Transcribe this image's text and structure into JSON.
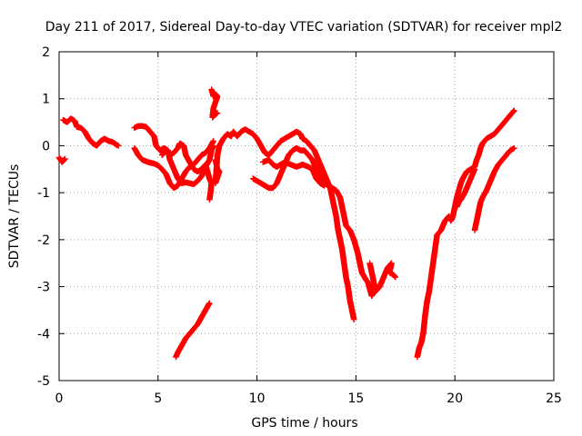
{
  "chart_data": {
    "type": "scatter",
    "title": "Day 211 of 2017, Sidereal Day-to-day VTEC variation (SDTVAR) for receiver mpl2",
    "xlabel": "GPS time / hours",
    "ylabel": "SDTVAR / TECUs",
    "xlim": [
      0,
      25
    ],
    "ylim": [
      -5,
      2
    ],
    "xticks": [
      "0",
      "5",
      "10",
      "15",
      "20",
      "25"
    ],
    "yticks": [
      "2",
      "1",
      "0",
      "-1",
      "-2",
      "-3",
      "-4",
      "-5"
    ],
    "grid": true,
    "marker": "plus",
    "color": "#ff0000",
    "tracks": [
      [
        [
          0.0,
          -0.25
        ],
        [
          0.15,
          -0.35
        ],
        [
          0.3,
          -0.28
        ]
      ],
      [
        [
          0.2,
          0.55
        ],
        [
          0.4,
          0.5
        ],
        [
          0.6,
          0.58
        ],
        [
          0.8,
          0.52
        ],
        [
          0.9,
          0.4
        ],
        [
          1.1,
          0.38
        ],
        [
          1.3,
          0.3
        ],
        [
          1.5,
          0.15
        ],
        [
          1.7,
          0.05
        ],
        [
          1.9,
          0.0
        ],
        [
          2.1,
          0.1
        ],
        [
          2.3,
          0.15
        ],
        [
          2.5,
          0.1
        ],
        [
          2.7,
          0.08
        ],
        [
          2.9,
          0.02
        ],
        [
          3.0,
          0.0
        ]
      ],
      [
        [
          3.8,
          0.38
        ],
        [
          4.0,
          0.42
        ],
        [
          4.2,
          0.42
        ],
        [
          4.4,
          0.4
        ],
        [
          4.6,
          0.3
        ],
        [
          4.8,
          0.2
        ],
        [
          4.9,
          0.0
        ],
        [
          5.1,
          -0.1
        ],
        [
          5.3,
          -0.05
        ],
        [
          5.5,
          -0.1
        ],
        [
          5.6,
          -0.3
        ],
        [
          5.8,
          -0.5
        ],
        [
          6.0,
          -0.7
        ],
        [
          6.2,
          -0.8
        ],
        [
          6.4,
          -0.78
        ],
        [
          6.6,
          -0.8
        ],
        [
          6.8,
          -0.82
        ],
        [
          7.0,
          -0.75
        ],
        [
          7.2,
          -0.65
        ],
        [
          7.4,
          -0.45
        ],
        [
          7.6,
          -0.3
        ],
        [
          7.7,
          -0.1
        ],
        [
          7.8,
          0.0
        ]
      ],
      [
        [
          3.8,
          -0.05
        ],
        [
          4.0,
          -0.2
        ],
        [
          4.2,
          -0.3
        ],
        [
          4.5,
          -0.35
        ],
        [
          4.8,
          -0.38
        ],
        [
          5.0,
          -0.42
        ],
        [
          5.2,
          -0.5
        ],
        [
          5.4,
          -0.6
        ],
        [
          5.6,
          -0.8
        ],
        [
          5.8,
          -0.9
        ],
        [
          6.0,
          -0.85
        ],
        [
          6.2,
          -0.7
        ],
        [
          6.4,
          -0.55
        ],
        [
          6.6,
          -0.45
        ],
        [
          6.8,
          -0.4
        ],
        [
          7.0,
          -0.3
        ],
        [
          7.2,
          -0.2
        ],
        [
          7.4,
          -0.15
        ],
        [
          7.6,
          -0.05
        ],
        [
          7.8,
          0.1
        ]
      ],
      [
        [
          5.2,
          -0.2
        ],
        [
          5.4,
          -0.1
        ],
        [
          5.6,
          -0.2
        ],
        [
          5.8,
          -0.15
        ],
        [
          6.0,
          -0.05
        ],
        [
          6.1,
          0.05
        ],
        [
          6.3,
          0.0
        ],
        [
          6.4,
          -0.2
        ],
        [
          6.6,
          -0.35
        ],
        [
          6.8,
          -0.5
        ],
        [
          7.0,
          -0.55
        ],
        [
          7.2,
          -0.5
        ],
        [
          7.4,
          -0.4
        ],
        [
          7.5,
          -0.55
        ],
        [
          7.6,
          -0.7
        ],
        [
          7.7,
          -0.8
        ],
        [
          7.65,
          -1.0
        ],
        [
          7.6,
          -1.15
        ]
      ],
      [
        [
          7.7,
          1.2
        ],
        [
          7.8,
          1.05
        ],
        [
          7.9,
          1.1
        ],
        [
          8.0,
          1.05
        ],
        [
          7.8,
          0.8
        ],
        [
          7.75,
          0.6
        ],
        [
          7.85,
          0.65
        ],
        [
          8.0,
          0.7
        ]
      ],
      [
        [
          7.9,
          -0.3
        ],
        [
          8.0,
          -0.5
        ],
        [
          8.1,
          -0.55
        ],
        [
          7.9,
          -0.8
        ],
        [
          8.0,
          -0.2
        ],
        [
          8.1,
          0.0
        ],
        [
          8.3,
          0.15
        ],
        [
          8.5,
          0.25
        ],
        [
          8.7,
          0.2
        ],
        [
          8.8,
          0.3
        ],
        [
          9.0,
          0.2
        ],
        [
          9.2,
          0.3
        ],
        [
          9.4,
          0.35
        ],
        [
          9.6,
          0.3
        ],
        [
          9.8,
          0.25
        ],
        [
          10.0,
          0.15
        ],
        [
          10.2,
          0.0
        ],
        [
          10.4,
          -0.15
        ],
        [
          10.6,
          -0.2
        ],
        [
          10.8,
          -0.1
        ],
        [
          11.0,
          0.0
        ],
        [
          11.2,
          0.1
        ],
        [
          11.4,
          0.15
        ],
        [
          11.6,
          0.2
        ],
        [
          11.8,
          0.25
        ],
        [
          12.0,
          0.3
        ],
        [
          12.2,
          0.25
        ],
        [
          12.3,
          0.15
        ],
        [
          12.5,
          0.1
        ],
        [
          12.7,
          0.0
        ],
        [
          12.9,
          -0.1
        ],
        [
          13.1,
          -0.3
        ],
        [
          13.3,
          -0.5
        ],
        [
          13.5,
          -0.7
        ],
        [
          13.7,
          -0.9
        ],
        [
          13.8,
          -1.1
        ],
        [
          13.9,
          -1.3
        ],
        [
          14.0,
          -1.5
        ],
        [
          14.1,
          -1.8
        ],
        [
          14.2,
          -2.0
        ],
        [
          14.3,
          -2.2
        ],
        [
          14.4,
          -2.5
        ],
        [
          14.5,
          -2.8
        ],
        [
          14.6,
          -3.0
        ],
        [
          14.7,
          -3.3
        ],
        [
          14.8,
          -3.5
        ],
        [
          14.9,
          -3.7
        ]
      ],
      [
        [
          9.8,
          -0.7
        ],
        [
          10.0,
          -0.75
        ],
        [
          10.2,
          -0.8
        ],
        [
          10.4,
          -0.85
        ],
        [
          10.6,
          -0.9
        ],
        [
          10.8,
          -0.9
        ],
        [
          11.0,
          -0.8
        ],
        [
          11.2,
          -0.6
        ],
        [
          11.4,
          -0.4
        ],
        [
          11.6,
          -0.2
        ],
        [
          11.8,
          -0.1
        ],
        [
          12.0,
          -0.05
        ],
        [
          12.2,
          -0.1
        ],
        [
          12.4,
          -0.1
        ],
        [
          12.6,
          -0.2
        ],
        [
          12.8,
          -0.3
        ],
        [
          13.0,
          -0.5
        ],
        [
          13.2,
          -0.7
        ],
        [
          13.4,
          -0.8
        ],
        [
          13.6,
          -0.85
        ],
        [
          13.8,
          -0.9
        ],
        [
          14.0,
          -0.95
        ],
        [
          14.2,
          -1.1
        ],
        [
          14.3,
          -1.3
        ],
        [
          14.4,
          -1.5
        ],
        [
          14.5,
          -1.7
        ],
        [
          14.7,
          -1.8
        ],
        [
          14.9,
          -2.0
        ],
        [
          15.0,
          -2.15
        ],
        [
          15.1,
          -2.3
        ],
        [
          15.2,
          -2.5
        ],
        [
          15.3,
          -2.7
        ],
        [
          15.5,
          -2.85
        ],
        [
          15.6,
          -2.9
        ],
        [
          15.7,
          -3.05
        ],
        [
          15.8,
          -3.2
        ],
        [
          15.9,
          -3.1
        ],
        [
          15.8,
          -3.0
        ]
      ],
      [
        [
          10.3,
          -0.35
        ],
        [
          10.6,
          -0.3
        ],
        [
          10.8,
          -0.4
        ],
        [
          11.0,
          -0.45
        ],
        [
          11.2,
          -0.4
        ],
        [
          11.4,
          -0.35
        ],
        [
          11.7,
          -0.4
        ],
        [
          12.0,
          -0.45
        ],
        [
          12.3,
          -0.4
        ],
        [
          12.6,
          -0.45
        ],
        [
          12.8,
          -0.5
        ],
        [
          13.0,
          -0.7
        ],
        [
          13.2,
          -0.8
        ],
        [
          13.4,
          -0.85
        ]
      ],
      [
        [
          15.7,
          -2.5
        ],
        [
          15.8,
          -2.7
        ],
        [
          15.9,
          -2.9
        ],
        [
          16.0,
          -3.1
        ],
        [
          16.2,
          -3.0
        ],
        [
          16.4,
          -2.8
        ],
        [
          16.6,
          -2.6
        ],
        [
          16.8,
          -2.5
        ],
        [
          16.7,
          -2.7
        ],
        [
          16.9,
          -2.75
        ],
        [
          17.0,
          -2.8
        ]
      ],
      [
        [
          18.1,
          -4.5
        ],
        [
          18.2,
          -4.3
        ],
        [
          18.3,
          -4.2
        ],
        [
          18.4,
          -4.0
        ],
        [
          18.5,
          -3.6
        ],
        [
          18.6,
          -3.3
        ],
        [
          18.7,
          -3.1
        ],
        [
          18.8,
          -2.8
        ],
        [
          18.9,
          -2.5
        ],
        [
          19.0,
          -2.2
        ],
        [
          19.1,
          -1.9
        ],
        [
          19.3,
          -1.8
        ],
        [
          19.5,
          -1.6
        ],
        [
          19.7,
          -1.5
        ],
        [
          19.8,
          -1.6
        ],
        [
          19.9,
          -1.5
        ],
        [
          20.0,
          -1.3
        ],
        [
          20.1,
          -1.1
        ],
        [
          20.2,
          -0.95
        ],
        [
          20.3,
          -0.8
        ],
        [
          20.4,
          -0.7
        ],
        [
          20.6,
          -0.55
        ],
        [
          20.8,
          -0.5
        ],
        [
          21.0,
          -0.45
        ],
        [
          21.1,
          -0.3
        ],
        [
          21.2,
          -0.2
        ],
        [
          21.3,
          -0.05
        ],
        [
          21.4,
          0.05
        ],
        [
          21.6,
          0.15
        ],
        [
          21.8,
          0.2
        ],
        [
          22.0,
          0.25
        ],
        [
          22.2,
          0.35
        ],
        [
          22.4,
          0.45
        ],
        [
          22.6,
          0.55
        ],
        [
          22.8,
          0.65
        ],
        [
          23.0,
          0.75
        ]
      ],
      [
        [
          20.1,
          -1.3
        ],
        [
          20.2,
          -1.2
        ],
        [
          20.3,
          -1.15
        ],
        [
          20.5,
          -1.0
        ],
        [
          20.7,
          -0.8
        ],
        [
          20.9,
          -0.6
        ],
        [
          21.0,
          -0.5
        ]
      ],
      [
        [
          21.0,
          -1.8
        ],
        [
          21.1,
          -1.6
        ],
        [
          21.2,
          -1.4
        ],
        [
          21.3,
          -1.2
        ],
        [
          21.4,
          -1.1
        ],
        [
          21.6,
          -0.95
        ],
        [
          21.8,
          -0.75
        ],
        [
          22.0,
          -0.55
        ],
        [
          22.2,
          -0.4
        ],
        [
          22.4,
          -0.3
        ],
        [
          22.6,
          -0.2
        ],
        [
          22.8,
          -0.1
        ],
        [
          23.0,
          -0.05
        ]
      ],
      [
        [
          5.9,
          -4.5
        ],
        [
          6.0,
          -4.4
        ],
        [
          6.2,
          -4.25
        ],
        [
          6.4,
          -4.1
        ],
        [
          6.6,
          -4.0
        ],
        [
          6.8,
          -3.9
        ],
        [
          7.0,
          -3.8
        ],
        [
          7.2,
          -3.65
        ],
        [
          7.4,
          -3.5
        ],
        [
          7.6,
          -3.35
        ]
      ]
    ]
  }
}
